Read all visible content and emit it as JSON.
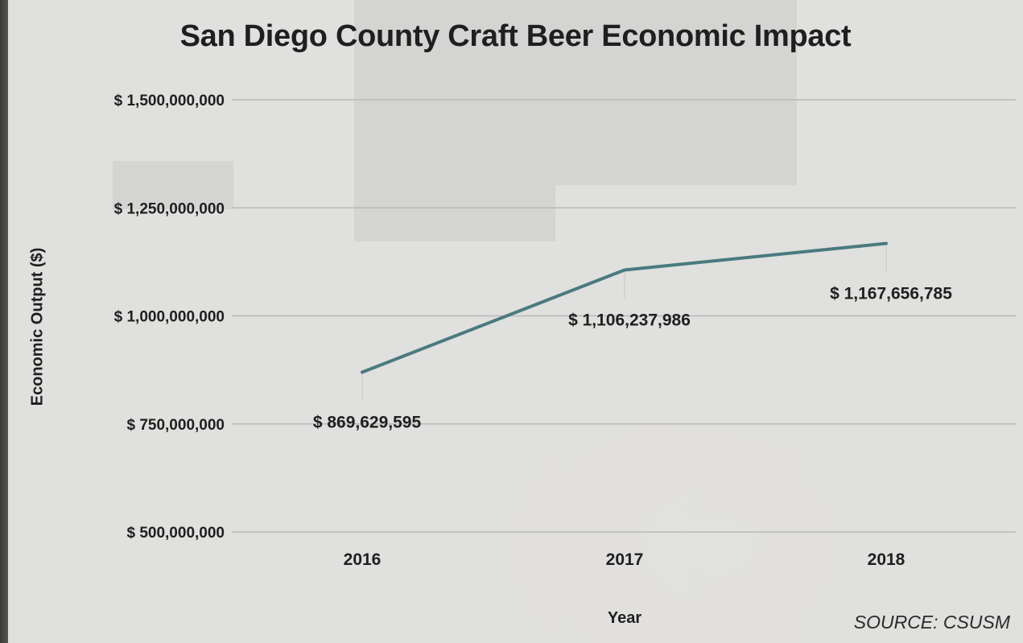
{
  "chart_data": {
    "type": "line",
    "title": "San Diego County Craft Beer Economic Impact",
    "xlabel": "Year",
    "ylabel": "Economic Output ($)",
    "source": "SOURCE: CSUSM",
    "categories": [
      "2016",
      "2017",
      "2018"
    ],
    "series": [
      {
        "values": [
          869629595,
          1106237986,
          1167656785
        ],
        "labels": [
          "$ 869,629,595",
          "$ 1,106,237,986",
          "$ 1,167,656,785"
        ]
      }
    ],
    "yticks": [
      500000000,
      750000000,
      1000000000,
      1250000000,
      1500000000
    ],
    "ytick_labels": [
      "$ 500,000,000",
      "$ 750,000,000",
      "$ 1,000,000,000",
      "$ 1,250,000,000",
      "$ 1,500,000,000"
    ],
    "ylim": [
      500000000,
      1500000000
    ],
    "grid": true,
    "legend": "none",
    "line_color": "#4a7a80"
  }
}
